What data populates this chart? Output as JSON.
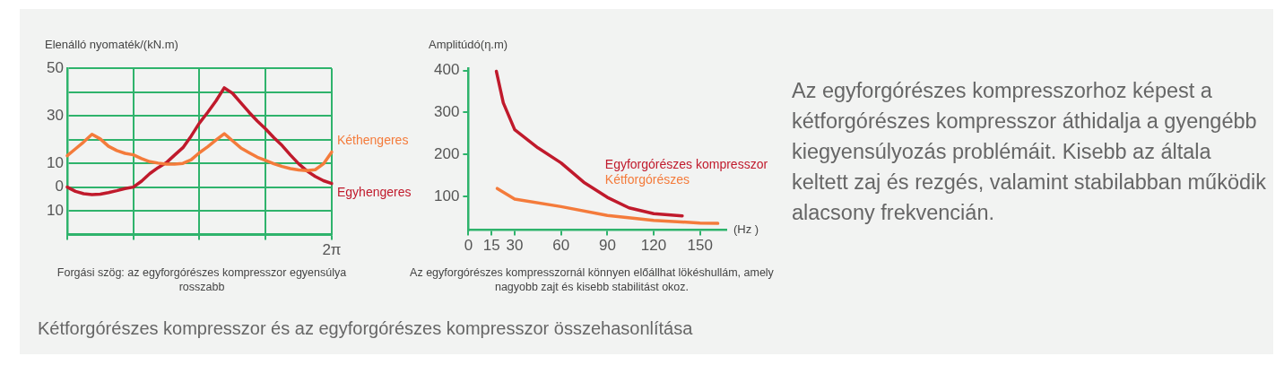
{
  "chart_data": [
    {
      "type": "line",
      "ylabel": "Elenálló nyomaték/(kN.m)",
      "categories": [
        null,
        null,
        null,
        null,
        null,
        null,
        null,
        null,
        null,
        null,
        null,
        null,
        null,
        null,
        null,
        null,
        null,
        null,
        null,
        null,
        null,
        null,
        null,
        null,
        null,
        null,
        null,
        null,
        null,
        null,
        null,
        null,
        "2π"
      ],
      "ylim": [
        -20,
        50
      ],
      "yticks": [
        {
          "value": -20,
          "label": null
        },
        {
          "value": -10,
          "label": "10"
        },
        {
          "value": 0,
          "label": "0"
        },
        {
          "value": 10,
          "label": "10"
        },
        {
          "value": 20,
          "label": null
        },
        {
          "value": 30,
          "label": "30"
        },
        {
          "value": 40,
          "label": null
        },
        {
          "value": 50,
          "label": "50"
        }
      ],
      "grid": true,
      "legend": false,
      "annotations": [
        "Forgási szög: az egyforgórészes kompresszor egyensúlya rosszabb"
      ],
      "series": [
        {
          "name": "Kéthengeres",
          "color": "#f47b3b",
          "values": [
            13.2,
            16.1,
            19,
            22.2,
            20.3,
            17.2,
            15.4,
            14.2,
            13.6,
            12,
            10.7,
            10.1,
            9.7,
            9.7,
            10,
            11.5,
            14.5,
            17,
            19.8,
            22.5,
            19.5,
            16.5,
            14.5,
            12.6,
            11.2,
            9.8,
            8.7,
            7.8,
            7.2,
            6.9,
            7.3,
            9.8,
            14.8
          ]
        },
        {
          "name": "Egyhengeres",
          "color": "#c01a2c",
          "values": [
            0,
            -1.8,
            -2.8,
            -3.2,
            -3,
            -2.3,
            -1.5,
            -0.6,
            0,
            2.5,
            5.7,
            8.2,
            10.3,
            13.5,
            16.6,
            21.5,
            27,
            31.5,
            36.3,
            41.8,
            39.5,
            35.5,
            31.5,
            27.8,
            24.5,
            20.8,
            17.5,
            13.5,
            9.8,
            6.8,
            4.5,
            2.7,
            1.5
          ]
        }
      ]
    },
    {
      "type": "line",
      "ylabel": "Amplitúdó(η.m)",
      "xlabel": "(Hz )",
      "xlim": [
        0,
        167
      ],
      "xticks": [
        0,
        15,
        30,
        60,
        90,
        120,
        150
      ],
      "ylim": [
        20,
        405
      ],
      "yticks": [
        100,
        200,
        300,
        400
      ],
      "grid": false,
      "legend": false,
      "annotations": [
        "Az egyforgórészes kompresszornál könnyen előállhat lökéshullám, amely nagyobb zajt és kisebb stabilitást okoz."
      ],
      "series": [
        {
          "name": "Egyforgórészes kompresszor",
          "color": "#c01a2c",
          "x": [
            18.1,
            22.6,
            30,
            45,
            60,
            74.7,
            90,
            104,
            120,
            138.5
          ],
          "values": [
            398,
            323,
            259,
            216,
            180,
            134,
            98,
            73,
            59,
            54
          ]
        },
        {
          "name": "Kétforgórészes",
          "color": "#f47b3b",
          "x": [
            18.7,
            30,
            60,
            90,
            120,
            150,
            161.5
          ],
          "values": [
            119,
            94,
            76,
            55,
            43,
            37,
            36
          ]
        }
      ]
    },
    {
      "type": "other",
      "annotations": [
        "Az egyforgórészes kompresszorhoz képest a kétforgórészes kompresszor áthidalja a gyengébb kiegyensúlyozás problémáit. Kisebb az általa keltett zaj és rezgés, valamint stabilabban működik alacsony frekvencián.",
        "Kétforgórészes kompresszor és az egyforgórészes kompresszor összehasonlítása"
      ]
    }
  ]
}
